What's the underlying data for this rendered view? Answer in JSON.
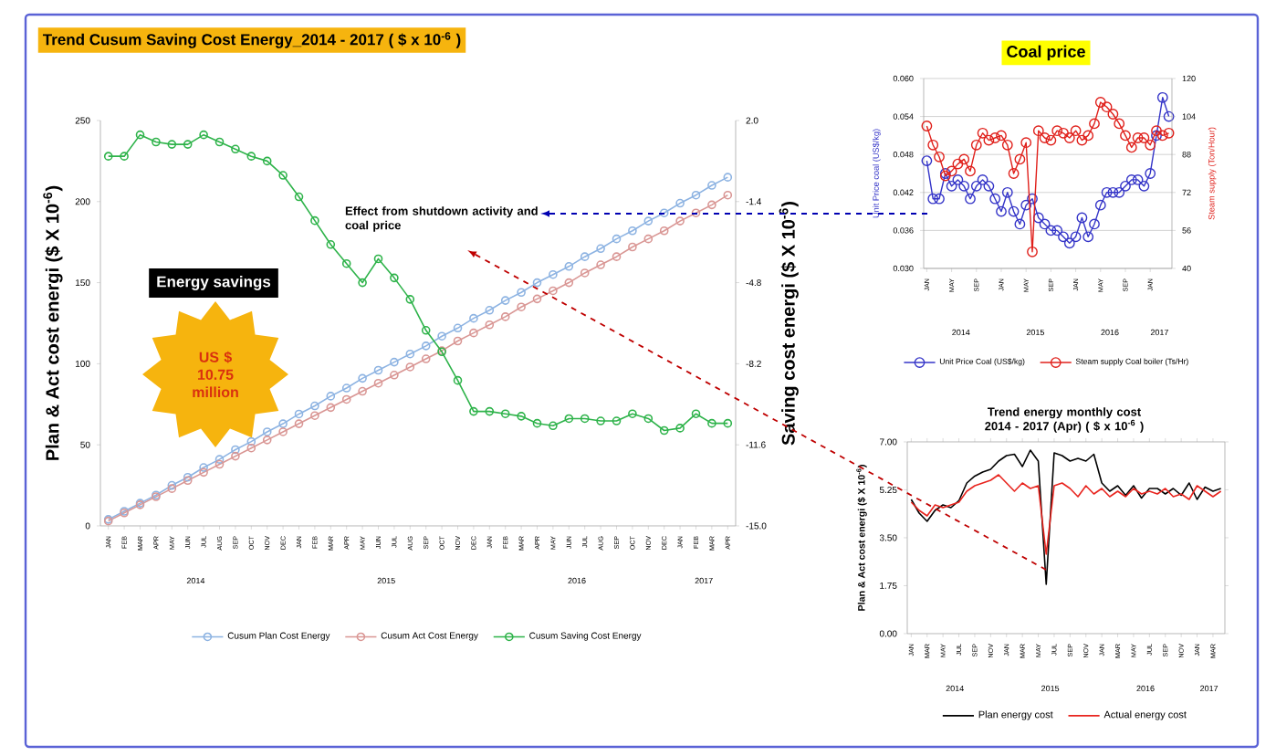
{
  "chart_data": [
    {
      "type": "line",
      "title": "Trend Cusum Saving Cost Energy_2014 - 2017  ( $ x 10$^{-6}$ )",
      "ylabel": "Plan & Act cost energi ($ X 10$^{-6}$)",
      "y2label": "Saving cost energi ($ X 10$^{-6}$)",
      "categories": [
        "JAN",
        "FEB",
        "MAR",
        "APR",
        "MAY",
        "JUN",
        "JUL",
        "AUG",
        "SEP",
        "OCT",
        "NOV",
        "DEC",
        "JAN",
        "FEB",
        "MAR",
        "APR",
        "MAY",
        "JUN",
        "JUL",
        "AUG",
        "SEP",
        "OCT",
        "NOV",
        "DEC",
        "JAN",
        "FEB",
        "MAR",
        "APR",
        "MAY",
        "JUN",
        "JUL",
        "AUG",
        "SEP",
        "OCT",
        "NOV",
        "DEC",
        "JAN",
        "FEB",
        "MAR",
        "APR"
      ],
      "series": [
        {
          "name": "Cusum Plan Cost Energy",
          "color": "#8db3e2",
          "values": [
            4,
            9,
            14,
            19,
            25,
            30,
            36,
            41,
            47,
            52,
            58,
            63,
            69,
            74,
            80,
            85,
            91,
            96,
            101,
            106,
            111,
            117,
            122,
            128,
            133,
            139,
            144,
            150,
            155,
            160,
            166,
            171,
            177,
            182,
            188,
            193,
            199,
            204,
            210,
            215
          ]
        },
        {
          "name": "Cusum Act Cost Energy",
          "color": "#d99694",
          "values": [
            3,
            8,
            13,
            18,
            23,
            28,
            33,
            38,
            43,
            48,
            53,
            58,
            63,
            68,
            73,
            78,
            83,
            88,
            93,
            98,
            103,
            108,
            114,
            119,
            124,
            129,
            135,
            140,
            145,
            150,
            156,
            161,
            166,
            172,
            177,
            182,
            188,
            193,
            198,
            204
          ]
        },
        {
          "name": "Cusum Saving Cost Energy",
          "color": "#2eb34a",
          "axis": "y2",
          "values": [
            0.5,
            0.5,
            1.4,
            1.1,
            1.0,
            1.0,
            1.4,
            1.1,
            0.8,
            0.5,
            0.3,
            -0.3,
            -1.2,
            -2.2,
            -3.2,
            -4.0,
            -4.8,
            -3.8,
            -4.6,
            -5.5,
            -6.8,
            -7.7,
            -8.9,
            -10.2,
            -10.2,
            -10.3,
            -10.4,
            -10.7,
            -10.8,
            -10.5,
            -10.5,
            -10.6,
            -10.6,
            -10.3,
            -10.5,
            -11.0,
            -10.9,
            -10.3,
            -10.7,
            -10.7
          ]
        }
      ],
      "ylim": [
        0,
        250
      ],
      "yticks": [
        0,
        50,
        100,
        150,
        200,
        250
      ],
      "y2lim": [
        -15.0,
        2.0
      ],
      "y2ticks": [
        {
          "value": -15.0,
          "label": "-15.0"
        },
        -11.6,
        -8.2,
        -4.8,
        -1.4,
        {
          "value": 2.0,
          "label": "2.0"
        }
      ],
      "marker": "circle",
      "legend": "bottom",
      "annotations": [
        "Effect from shutdown activity and coal price",
        "Energy savings",
        "US $ 10.75 million",
        "2014",
        "2015",
        "2016",
        "2017"
      ]
    },
    {
      "type": "line",
      "title": "Coal price",
      "ylabel": "Unit Price coal (US$/kg)",
      "y2label": "Steam supply (Ton/Hour)",
      "categories": [
        "JAN",
        null,
        null,
        null,
        "MAY",
        null,
        null,
        null,
        "SEP",
        null,
        null,
        null,
        "JAN",
        null,
        null,
        null,
        "MAY",
        null,
        null,
        null,
        "SEP",
        null,
        null,
        null,
        "JAN",
        null,
        null,
        null,
        "MAY",
        null,
        null,
        null,
        "SEP",
        null,
        null,
        null,
        "JAN",
        null,
        null,
        null
      ],
      "series": [
        {
          "name": "Unit Price Coal (US$/kg)",
          "color": "#3535c8",
          "values": [
            0.047,
            0.041,
            0.041,
            0.045,
            0.043,
            0.044,
            0.043,
            0.041,
            0.043,
            0.044,
            0.043,
            0.041,
            0.039,
            0.042,
            0.039,
            0.037,
            0.04,
            0.041,
            0.038,
            0.037,
            0.036,
            0.036,
            0.035,
            0.034,
            0.035,
            0.038,
            0.035,
            0.037,
            0.04,
            0.042,
            0.042,
            0.042,
            0.043,
            0.044,
            0.044,
            0.043,
            0.045,
            0.051,
            0.057,
            0.054
          ]
        },
        {
          "name": "Steam supply Coal boiler (Ts/Hr)",
          "color": "#e0201b",
          "axis": "y2",
          "values": [
            100,
            92,
            87,
            79,
            81,
            84,
            86,
            81,
            92,
            97,
            94,
            95,
            96,
            92,
            80,
            86,
            93,
            47,
            98,
            95,
            94,
            98,
            97,
            95,
            98,
            94,
            96,
            101,
            110,
            108,
            105,
            101,
            96,
            91,
            95,
            95,
            92,
            98,
            96,
            97
          ]
        }
      ],
      "ylim": [
        0.03,
        0.06
      ],
      "yticks": [
        {
          "value": 0.03,
          "label": "0.030"
        },
        0.036,
        0.042,
        0.048,
        0.054,
        {
          "value": 0.06,
          "label": "0.060"
        }
      ],
      "y2lim": [
        40,
        120
      ],
      "y2ticks": [
        40,
        56,
        72,
        88,
        104,
        120
      ],
      "grid": "y",
      "marker": "circle",
      "legend": "bottom",
      "annotations": [
        "2014",
        "2015",
        "2016",
        "2017"
      ]
    },
    {
      "type": "line",
      "title": "Trend energy monthly cost 2014 - 2017 (Apr) ( $ x 10$^{-6}$ )",
      "ylabel": "Plan & Act cost energi ($ X 10$^{-6}$)",
      "categories": [
        "JAN",
        null,
        "MAR",
        null,
        "MAY",
        null,
        "JUL",
        null,
        "SEP",
        null,
        "NOV",
        null,
        "JAN",
        null,
        "MAR",
        null,
        "MAY",
        null,
        "JUL",
        null,
        "SEP",
        null,
        "NOV",
        null,
        "JAN",
        null,
        "MAR",
        null,
        "MAY",
        null,
        "JUL",
        null,
        "SEP",
        null,
        "NOV",
        null,
        "JAN",
        null,
        "MAR",
        null
      ],
      "series": [
        {
          "name": "Plan energy cost",
          "color": "#000000",
          "values": [
            4.9,
            4.4,
            4.1,
            4.5,
            4.7,
            4.6,
            4.85,
            5.5,
            5.75,
            5.9,
            6.0,
            6.3,
            6.5,
            6.55,
            6.1,
            6.7,
            6.3,
            1.8,
            6.6,
            6.5,
            6.3,
            6.4,
            6.3,
            6.55,
            5.5,
            5.2,
            5.4,
            5.05,
            5.4,
            4.95,
            5.3,
            5.3,
            5.1,
            5.3,
            5.05,
            5.5,
            4.9,
            5.35,
            5.2,
            5.3
          ]
        },
        {
          "name": "Actual energy cost",
          "color": "#e8251f",
          "values": [
            4.8,
            4.5,
            4.3,
            4.7,
            4.6,
            4.7,
            4.8,
            5.2,
            5.4,
            5.5,
            5.6,
            5.8,
            5.5,
            5.2,
            5.5,
            5.3,
            5.4,
            2.9,
            5.4,
            5.5,
            5.3,
            5.0,
            5.4,
            5.1,
            5.3,
            5.0,
            5.2,
            5.0,
            5.3,
            5.1,
            5.2,
            5.1,
            5.3,
            5.0,
            5.1,
            4.9,
            5.4,
            5.2,
            5.0,
            5.2
          ]
        }
      ],
      "ylim": [
        0,
        7
      ],
      "yticks": [
        {
          "value": 0,
          "label": "0.00"
        },
        {
          "value": 1.75,
          "label": "1.75"
        },
        {
          "value": 3.5,
          "label": "3.50"
        },
        {
          "value": 5.25,
          "label": "5.25"
        },
        {
          "value": 7,
          "label": "7.00"
        }
      ],
      "marker": "none",
      "legend": "bottom",
      "annotations": [
        "2014",
        "2015",
        "2016",
        "2017"
      ]
    }
  ]
}
